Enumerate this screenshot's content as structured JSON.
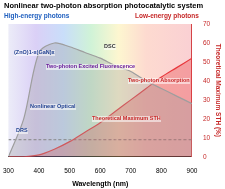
{
  "chart_data": {
    "type": "line",
    "title": "Nonlinear two-photon absorption photocatalytic system",
    "subtitles": [
      "High-energy photons",
      "Low-energy photons"
    ],
    "x_label": "Wavelength (nm)",
    "y2_label": "Theoretical Maximum STH (%)",
    "x": [
      300,
      350,
      400,
      450,
      500,
      550,
      600,
      650,
      700,
      750,
      800,
      850,
      900
    ],
    "series": [
      {
        "color": "#9e9e9e",
        "values": [
          0,
          20,
          55,
          60,
          58,
          55,
          52,
          48,
          45,
          40,
          36,
          32,
          28
        ],
        "marker": "none",
        "axis": "y2"
      },
      {
        "color": "#e8383d",
        "values": [
          0,
          0,
          1,
          4,
          8,
          13,
          18,
          24,
          30,
          36,
          42,
          47,
          52
        ],
        "marker": "none",
        "axis": "y2"
      },
      {
        "color": "#777777",
        "values": [
          9,
          9,
          9,
          9,
          9,
          9,
          9,
          9,
          9,
          9,
          9,
          9,
          9
        ],
        "marker": "none",
        "line_style": "dashed",
        "axis": "y2"
      }
    ],
    "xlim": [
      300,
      900
    ],
    "xticks": [
      300,
      400,
      500,
      600,
      700,
      800,
      900
    ],
    "y2lim": [
      0,
      70
    ],
    "y2ticks": [
      0,
      10,
      20,
      30,
      40,
      50,
      60,
      70
    ],
    "grid": false,
    "annotations": [
      "(ZnO)1-x(GaN)x",
      "Two-photon Excited Fluorescence",
      "DSC",
      "DRS",
      "Nonlinear Optical",
      "Theoretical Maximum STH",
      "Two-photon Absorption"
    ]
  }
}
